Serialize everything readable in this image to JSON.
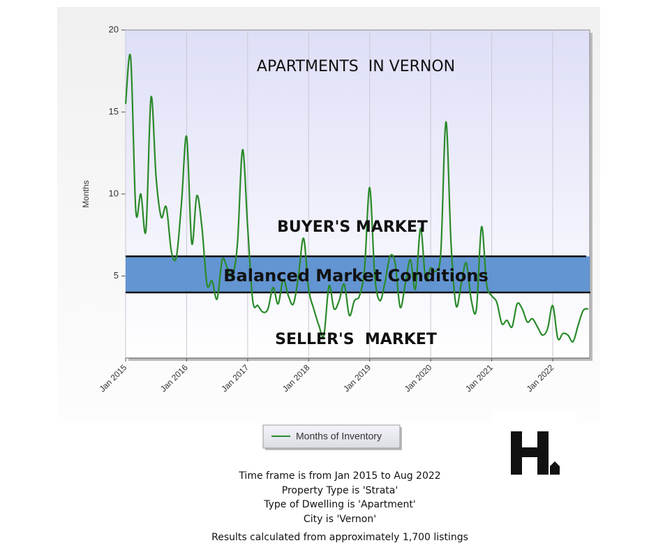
{
  "chart_data": {
    "type": "line",
    "title": "APARTMENTS  IN VERNON",
    "y_label": "Months",
    "categories": [
      "Jan 2015",
      null,
      null,
      null,
      null,
      null,
      null,
      null,
      null,
      null,
      null,
      null,
      "Jan 2016",
      null,
      null,
      null,
      null,
      null,
      null,
      null,
      null,
      null,
      null,
      null,
      "Jan 2017",
      null,
      null,
      null,
      null,
      null,
      null,
      null,
      null,
      null,
      null,
      null,
      "Jan 2018",
      null,
      null,
      null,
      null,
      null,
      null,
      null,
      null,
      null,
      null,
      null,
      "Jan 2019",
      null,
      null,
      null,
      null,
      null,
      null,
      null,
      null,
      null,
      null,
      null,
      "Jan 2020",
      null,
      null,
      null,
      null,
      null,
      null,
      null,
      null,
      null,
      null,
      null,
      "Jan 2021",
      null,
      null,
      null,
      null,
      null,
      null,
      null,
      null,
      null,
      null,
      null,
      "Jan 2022",
      null,
      null,
      null,
      null,
      null,
      null,
      null
    ],
    "series": [
      {
        "name": "Months of Inventory",
        "color": "#2a8a2a",
        "values": [
          15.5,
          18.3,
          9,
          10,
          7.8,
          15.9,
          11,
          8.6,
          9.2,
          6.5,
          6.2,
          9.5,
          13.5,
          7,
          9.9,
          8,
          4.5,
          4.7,
          3.6,
          6,
          5.5,
          5,
          7,
          12.7,
          8,
          3.5,
          3.2,
          2.8,
          3,
          4.3,
          3.3,
          4.8,
          3.8,
          3.3,
          5,
          7.3,
          4.2,
          3,
          2,
          1.4,
          4.4,
          3,
          3.5,
          4.5,
          2.6,
          3.5,
          3.8,
          5.5,
          10.4,
          5,
          3.5,
          4.6,
          6.2,
          5.8,
          3.1,
          4.5,
          6,
          4.2,
          7.9,
          4.8,
          5.5,
          5.3,
          6.5,
          14.4,
          7,
          3.2,
          4.5,
          5.8,
          3.5,
          3,
          8,
          4.5,
          3.8,
          3.4,
          2.1,
          2.3,
          1.9,
          3.3,
          3,
          2.2,
          2.4,
          1.9,
          1.4,
          1.8,
          3.2,
          1.2,
          1.5,
          1.4,
          1,
          2,
          2.9,
          3
        ]
      }
    ],
    "ylim": [
      0,
      20
    ],
    "yticks": [
      5,
      10,
      15,
      20
    ],
    "grid": true,
    "balanced_band": [
      4,
      6.2
    ],
    "band_color": "#5b8fd0",
    "annotations": {
      "buyers": "BUYER'S MARKET",
      "balanced": "Balanced Market Conditions",
      "sellers": "SELLER'S  MARKET"
    }
  },
  "footer": [
    "Time frame is from Jan 2015 to Aug 2022",
    "Property Type is 'Strata'",
    "Type of Dwelling is 'Apartment'",
    "City is 'Vernon'",
    "Results calculated from approximately 1,700 listings"
  ]
}
